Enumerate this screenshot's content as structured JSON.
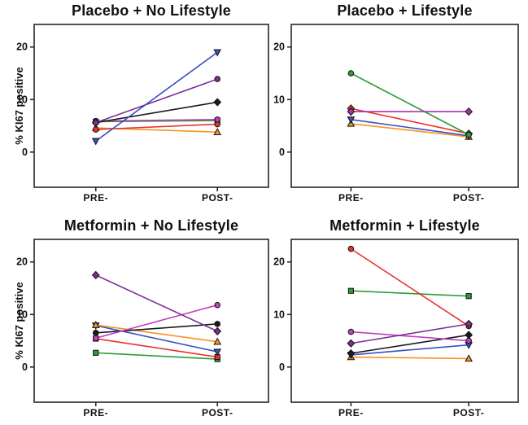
{
  "figure": {
    "ylabel": "% KI67 positive",
    "x_categories": [
      "PRE-",
      "POST-"
    ],
    "yticks": [
      0,
      10,
      20
    ],
    "axis_color": "#262626",
    "background": "#ffffff"
  },
  "chart_data": [
    {
      "type": "line",
      "title": "Placebo + No Lifestyle",
      "xlabel": "",
      "ylabel": "% KI67 positive",
      "x_categories": [
        "PRE-",
        "POST-"
      ],
      "yticks": [
        0,
        10,
        20
      ],
      "ylim_visible": [
        -6.7,
        24.3
      ],
      "grid": false,
      "legend": "none",
      "series": [
        {
          "name": "green-square",
          "color": "#2e9b34",
          "marker": "square",
          "values": [
            5.8,
            6.0
          ]
        },
        {
          "name": "orange-triangle-up",
          "color": "#f79420",
          "marker": "triangle-up",
          "values": [
            4.6,
            3.8
          ]
        },
        {
          "name": "red-circle",
          "color": "#e8322c",
          "marker": "circle",
          "values": [
            4.3,
            5.3
          ]
        },
        {
          "name": "magenta-circle",
          "color": "#c13fbe",
          "marker": "circle",
          "values": [
            5.9,
            6.2
          ]
        },
        {
          "name": "black-diamond",
          "color": "#1a1a1a",
          "marker": "diamond",
          "values": [
            5.6,
            9.5
          ]
        },
        {
          "name": "purple-circle",
          "color": "#7d2f96",
          "marker": "circle",
          "values": [
            5.6,
            13.9
          ]
        },
        {
          "name": "blue-triangle-down",
          "color": "#3a4fc1",
          "marker": "triangle-down",
          "values": [
            2.1,
            19.0
          ]
        }
      ]
    },
    {
      "type": "line",
      "title": "Placebo + Lifestyle",
      "xlabel": "",
      "ylabel": "% KI67 positive",
      "x_categories": [
        "PRE-",
        "POST-"
      ],
      "yticks": [
        0,
        10,
        20
      ],
      "ylim_visible": [
        -6.7,
        24.3
      ],
      "grid": false,
      "legend": "none",
      "series": [
        {
          "name": "orange-triangle-up",
          "color": "#f79420",
          "marker": "triangle-up",
          "values": [
            5.4,
            2.9
          ]
        },
        {
          "name": "blue-triangle-down",
          "color": "#3a4fc1",
          "marker": "triangle-down",
          "values": [
            6.2,
            3.1
          ]
        },
        {
          "name": "red-diamond",
          "color": "#e8322c",
          "marker": "diamond",
          "values": [
            8.3,
            3.5
          ]
        },
        {
          "name": "green-circle",
          "color": "#2e9b34",
          "marker": "circle",
          "values": [
            15.0,
            3.3
          ]
        },
        {
          "name": "purple-diamond",
          "color": "#a832a8",
          "marker": "diamond",
          "values": [
            7.7,
            7.7
          ]
        }
      ]
    },
    {
      "type": "line",
      "title": "Metformin + No Lifestyle",
      "xlabel": "",
      "ylabel": "% KI67 positive",
      "x_categories": [
        "PRE-",
        "POST-"
      ],
      "yticks": [
        0,
        10,
        20
      ],
      "ylim_visible": [
        -6.7,
        24.3
      ],
      "grid": false,
      "legend": "none",
      "series": [
        {
          "name": "green-square",
          "color": "#2e9b34",
          "marker": "square",
          "values": [
            2.7,
            1.5
          ]
        },
        {
          "name": "red-square",
          "color": "#e8322c",
          "marker": "square",
          "values": [
            5.4,
            1.9
          ]
        },
        {
          "name": "blue-triangle-down",
          "color": "#3a4fc1",
          "marker": "triangle-down",
          "values": [
            7.9,
            2.9
          ]
        },
        {
          "name": "orange-triangle-up",
          "color": "#f79420",
          "marker": "triangle-up",
          "values": [
            8.0,
            4.8
          ]
        },
        {
          "name": "black-circle",
          "color": "#1a1a1a",
          "marker": "circle",
          "values": [
            6.5,
            8.2
          ]
        },
        {
          "name": "magenta-circle",
          "color": "#c13fbe",
          "marker": "circle",
          "values": [
            5.5,
            11.8
          ]
        },
        {
          "name": "purple-diamond",
          "color": "#7d2f96",
          "marker": "diamond",
          "values": [
            17.5,
            6.8
          ]
        }
      ]
    },
    {
      "type": "line",
      "title": "Metformin + Lifestyle",
      "xlabel": "",
      "ylabel": "% KI67 positive",
      "x_categories": [
        "PRE-",
        "POST-"
      ],
      "yticks": [
        0,
        10,
        20
      ],
      "ylim_visible": [
        -6.7,
        24.3
      ],
      "grid": false,
      "legend": "none",
      "series": [
        {
          "name": "orange-triangle-up",
          "color": "#f79420",
          "marker": "triangle-up",
          "values": [
            1.9,
            1.6
          ]
        },
        {
          "name": "blue-triangle-down",
          "color": "#3a4fc1",
          "marker": "triangle-down",
          "values": [
            2.3,
            4.2
          ]
        },
        {
          "name": "black-diamond",
          "color": "#1a1a1a",
          "marker": "diamond",
          "values": [
            2.6,
            6.1
          ]
        },
        {
          "name": "magenta-circle",
          "color": "#c13fbe",
          "marker": "circle",
          "values": [
            6.7,
            5.0
          ]
        },
        {
          "name": "green-square",
          "color": "#2e9b34",
          "marker": "square",
          "values": [
            14.5,
            13.5
          ]
        },
        {
          "name": "red-circle",
          "color": "#e8322c",
          "marker": "circle",
          "values": [
            22.5,
            7.8
          ]
        },
        {
          "name": "purple-diamond",
          "color": "#7d2f96",
          "marker": "diamond",
          "values": [
            4.5,
            8.2
          ]
        }
      ]
    }
  ]
}
